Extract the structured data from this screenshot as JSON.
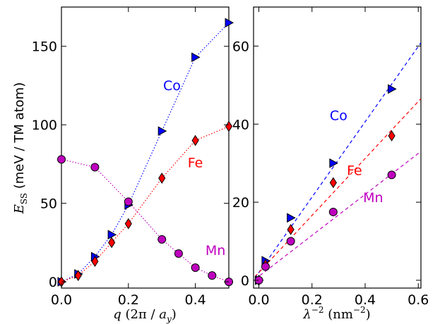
{
  "chart_data": [
    {
      "type": "scatter",
      "xlabel": "q (2π / a_y)",
      "ylabel": "E_SS (meV / TM atom)",
      "xlim": [
        0,
        0.5
      ],
      "ylim": [
        -4,
        175
      ],
      "xticks": [
        0.0,
        0.2,
        0.4
      ],
      "yticks": [
        0,
        50,
        100,
        150
      ],
      "xtick_labels": [
        "0.0",
        "0.2",
        "0.4"
      ],
      "ytick_labels": [
        "0",
        "50",
        "100",
        "150"
      ],
      "grid": false,
      "series": [
        {
          "name": "Co",
          "color": "#0000ff",
          "marker": "triangle-right",
          "line": "dotted",
          "x": [
            0,
            0.05,
            0.1,
            0.15,
            0.2,
            0.3,
            0.4,
            0.5
          ],
          "y": [
            0,
            5,
            16,
            30,
            49,
            96,
            143,
            165
          ]
        },
        {
          "name": "Fe",
          "color": "#ff0000",
          "marker": "diamond",
          "line": "dotted",
          "x": [
            0,
            0.05,
            0.1,
            0.15,
            0.2,
            0.3,
            0.4,
            0.5
          ],
          "y": [
            0,
            4,
            13,
            25,
            37,
            66,
            90,
            99
          ]
        },
        {
          "name": "Mn",
          "color": "#bf00bf",
          "marker": "circle",
          "line": "dotted",
          "x": [
            0,
            0.1,
            0.2,
            0.3,
            0.35,
            0.4,
            0.45,
            0.5
          ],
          "y": [
            78,
            73,
            51,
            27,
            18,
            9,
            4,
            0
          ]
        }
      ],
      "annotations": [
        {
          "text": "Co",
          "color": "#0000ff",
          "x": 0.33,
          "y": 122
        },
        {
          "text": "Fe",
          "color": "#ff0000",
          "x": 0.4,
          "y": 73
        },
        {
          "text": "Mn",
          "color": "#bf00bf",
          "x": 0.46,
          "y": 17
        }
      ]
    },
    {
      "type": "scatter",
      "xlabel": "λ^-2 (nm^-2)",
      "xlim": [
        -0.02,
        0.61
      ],
      "ylim": [
        -2,
        70
      ],
      "xticks": [
        0.0,
        0.2,
        0.4,
        0.6
      ],
      "yticks": [
        0,
        20,
        40,
        60
      ],
      "xtick_labels": [
        "0.0",
        "0.2",
        "0.4",
        "0.6"
      ],
      "ytick_labels": [
        "0",
        "20",
        "40",
        "60"
      ],
      "grid": false,
      "series": [
        {
          "name": "Co",
          "color": "#0000ff",
          "marker": "triangle-right",
          "x": [
            0,
            0.025,
            0.12,
            0.28,
            0.5
          ],
          "y": [
            0,
            5,
            16,
            30,
            49
          ],
          "fit": {
            "slope": 96.5,
            "intercept": 2
          }
        },
        {
          "name": "Fe",
          "color": "#ff0000",
          "marker": "diamond",
          "x": [
            0,
            0.025,
            0.12,
            0.28,
            0.5
          ],
          "y": [
            0,
            4,
            13,
            25,
            37
          ],
          "fit": {
            "slope": 73,
            "intercept": 2
          }
        },
        {
          "name": "Mn",
          "color": "#bf00bf",
          "marker": "circle",
          "x": [
            0,
            0.025,
            0.12,
            0.28,
            0.5
          ],
          "y": [
            0,
            3.5,
            10,
            17.5,
            27
          ],
          "fit": {
            "slope": 52.5,
            "intercept": 1
          }
        }
      ],
      "annotations": [
        {
          "text": "Co",
          "color": "#0000ff",
          "x": 0.3,
          "y": 41
        },
        {
          "text": "Fe",
          "color": "#ff0000",
          "x": 0.36,
          "y": 27
        },
        {
          "text": "Mn",
          "color": "#bf00bf",
          "x": 0.43,
          "y": 20
        }
      ]
    }
  ]
}
